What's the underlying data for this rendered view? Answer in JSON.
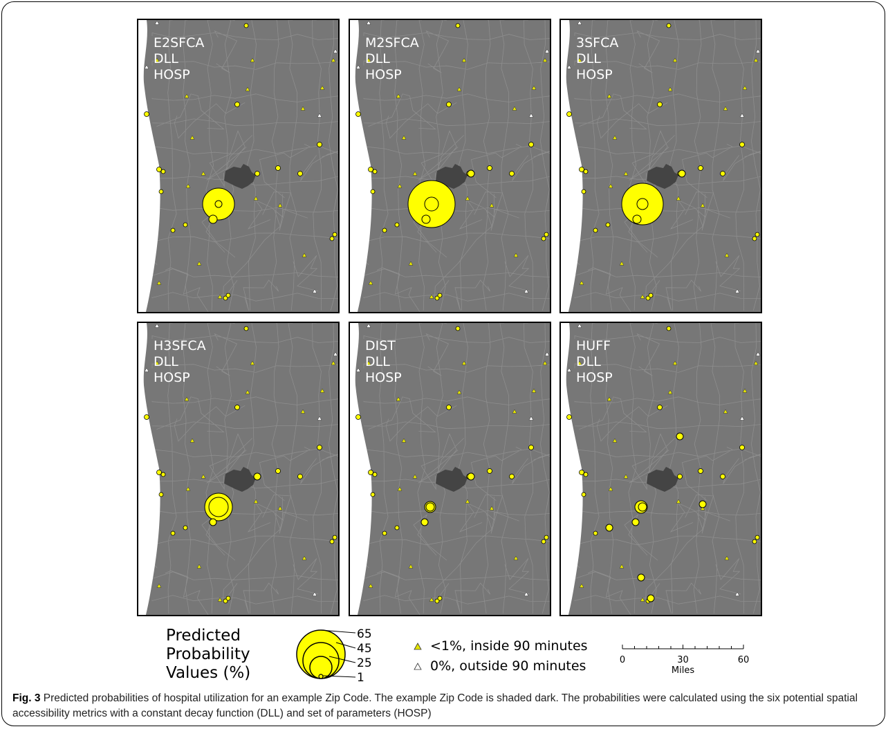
{
  "panels": [
    {
      "id": "e2sfca",
      "title": [
        "E2SFCA",
        "DLL",
        "HOSP"
      ]
    },
    {
      "id": "m2sfca",
      "title": [
        "M2SFCA",
        "DLL",
        "HOSP"
      ]
    },
    {
      "id": "3sfca",
      "title": [
        "3SFCA",
        "DLL",
        "HOSP"
      ]
    },
    {
      "id": "h3sfca",
      "title": [
        "H3SFCA",
        "DLL",
        "HOSP"
      ]
    },
    {
      "id": "dist",
      "title": [
        "DIST",
        "DLL",
        "HOSP"
      ]
    },
    {
      "id": "huff",
      "title": [
        "HUFF",
        "DLL",
        "HOSP"
      ]
    }
  ],
  "legend": {
    "title_lines": [
      "Predicted",
      "Probability",
      "Values (%)"
    ],
    "size_values": [
      "65",
      "45",
      "25",
      "1"
    ],
    "inside_label": "<1%, inside 90 minutes",
    "outside_label": "0%, outside 90 minutes"
  },
  "scale": {
    "ticks": [
      "0",
      "30",
      "60"
    ],
    "unit": "Miles"
  },
  "caption": {
    "label": "Fig. 3",
    "text": " Predicted probabilities of hospital utilization for an example Zip Code. The example Zip Code is shaded dark. The probabilities were calculated using the six potential spatial accessibility metrics with a constant decay function (DLL) and set of parameters (HOSP)"
  },
  "colors": {
    "map_background": "#777777",
    "boundary_lines": "#8e8e8e",
    "lake": "#ffffff",
    "example_zip": "#444444",
    "circle_fill": "#ffff00",
    "triangle_inside": "#e6e600",
    "triangle_outside": "#ffffff"
  }
}
